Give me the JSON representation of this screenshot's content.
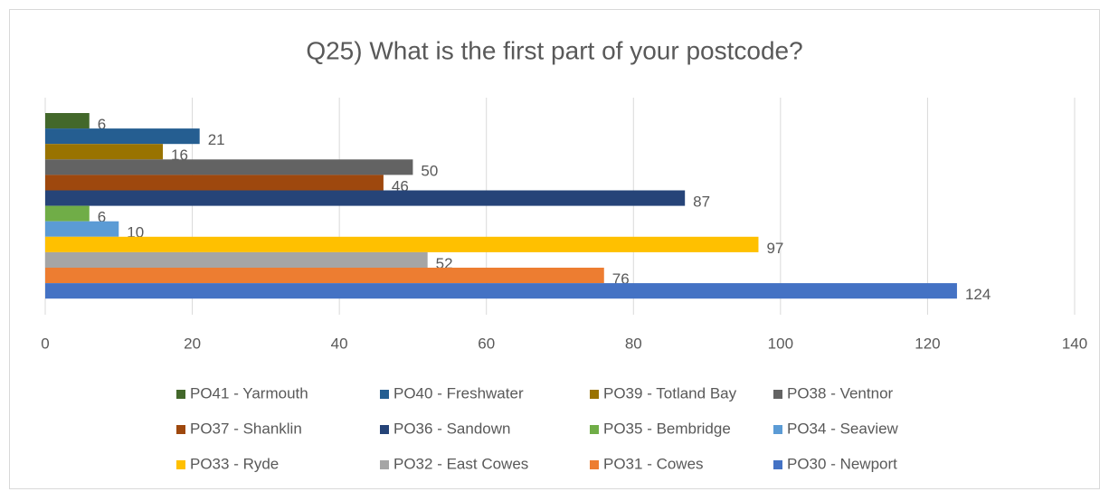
{
  "chart_data": {
    "type": "bar",
    "orientation": "horizontal",
    "title": "Q25) What is the first part of your postcode?",
    "categories": [
      null
    ],
    "series": [
      {
        "name": "PO41 - Yarmouth",
        "color": "#43682b",
        "values": [
          6
        ]
      },
      {
        "name": "PO40 - Freshwater",
        "color": "#255e91",
        "values": [
          21
        ]
      },
      {
        "name": "PO39 - Totland Bay",
        "color": "#997300",
        "values": [
          16
        ]
      },
      {
        "name": "PO38 - Ventnor",
        "color": "#636363",
        "values": [
          50
        ]
      },
      {
        "name": "PO37 - Shanklin",
        "color": "#9e480e",
        "values": [
          46
        ]
      },
      {
        "name": "PO36 - Sandown",
        "color": "#264478",
        "values": [
          87
        ]
      },
      {
        "name": "PO35 - Bembridge",
        "color": "#70ad47",
        "values": [
          6
        ]
      },
      {
        "name": "PO34 - Seaview",
        "color": "#5b9bd5",
        "values": [
          10
        ]
      },
      {
        "name": "PO33 - Ryde",
        "color": "#ffc000",
        "values": [
          97
        ]
      },
      {
        "name": "PO32 - East Cowes",
        "color": "#a5a5a5",
        "values": [
          52
        ]
      },
      {
        "name": "PO31 - Cowes",
        "color": "#ed7d31",
        "values": [
          76
        ]
      },
      {
        "name": "PO30 - Newport",
        "color": "#4472c4",
        "values": [
          124
        ]
      }
    ],
    "xlim": [
      0,
      140
    ],
    "xticks": [
      0,
      20,
      40,
      60,
      80,
      100,
      120,
      140
    ],
    "grid": true,
    "legend": "bottom"
  }
}
